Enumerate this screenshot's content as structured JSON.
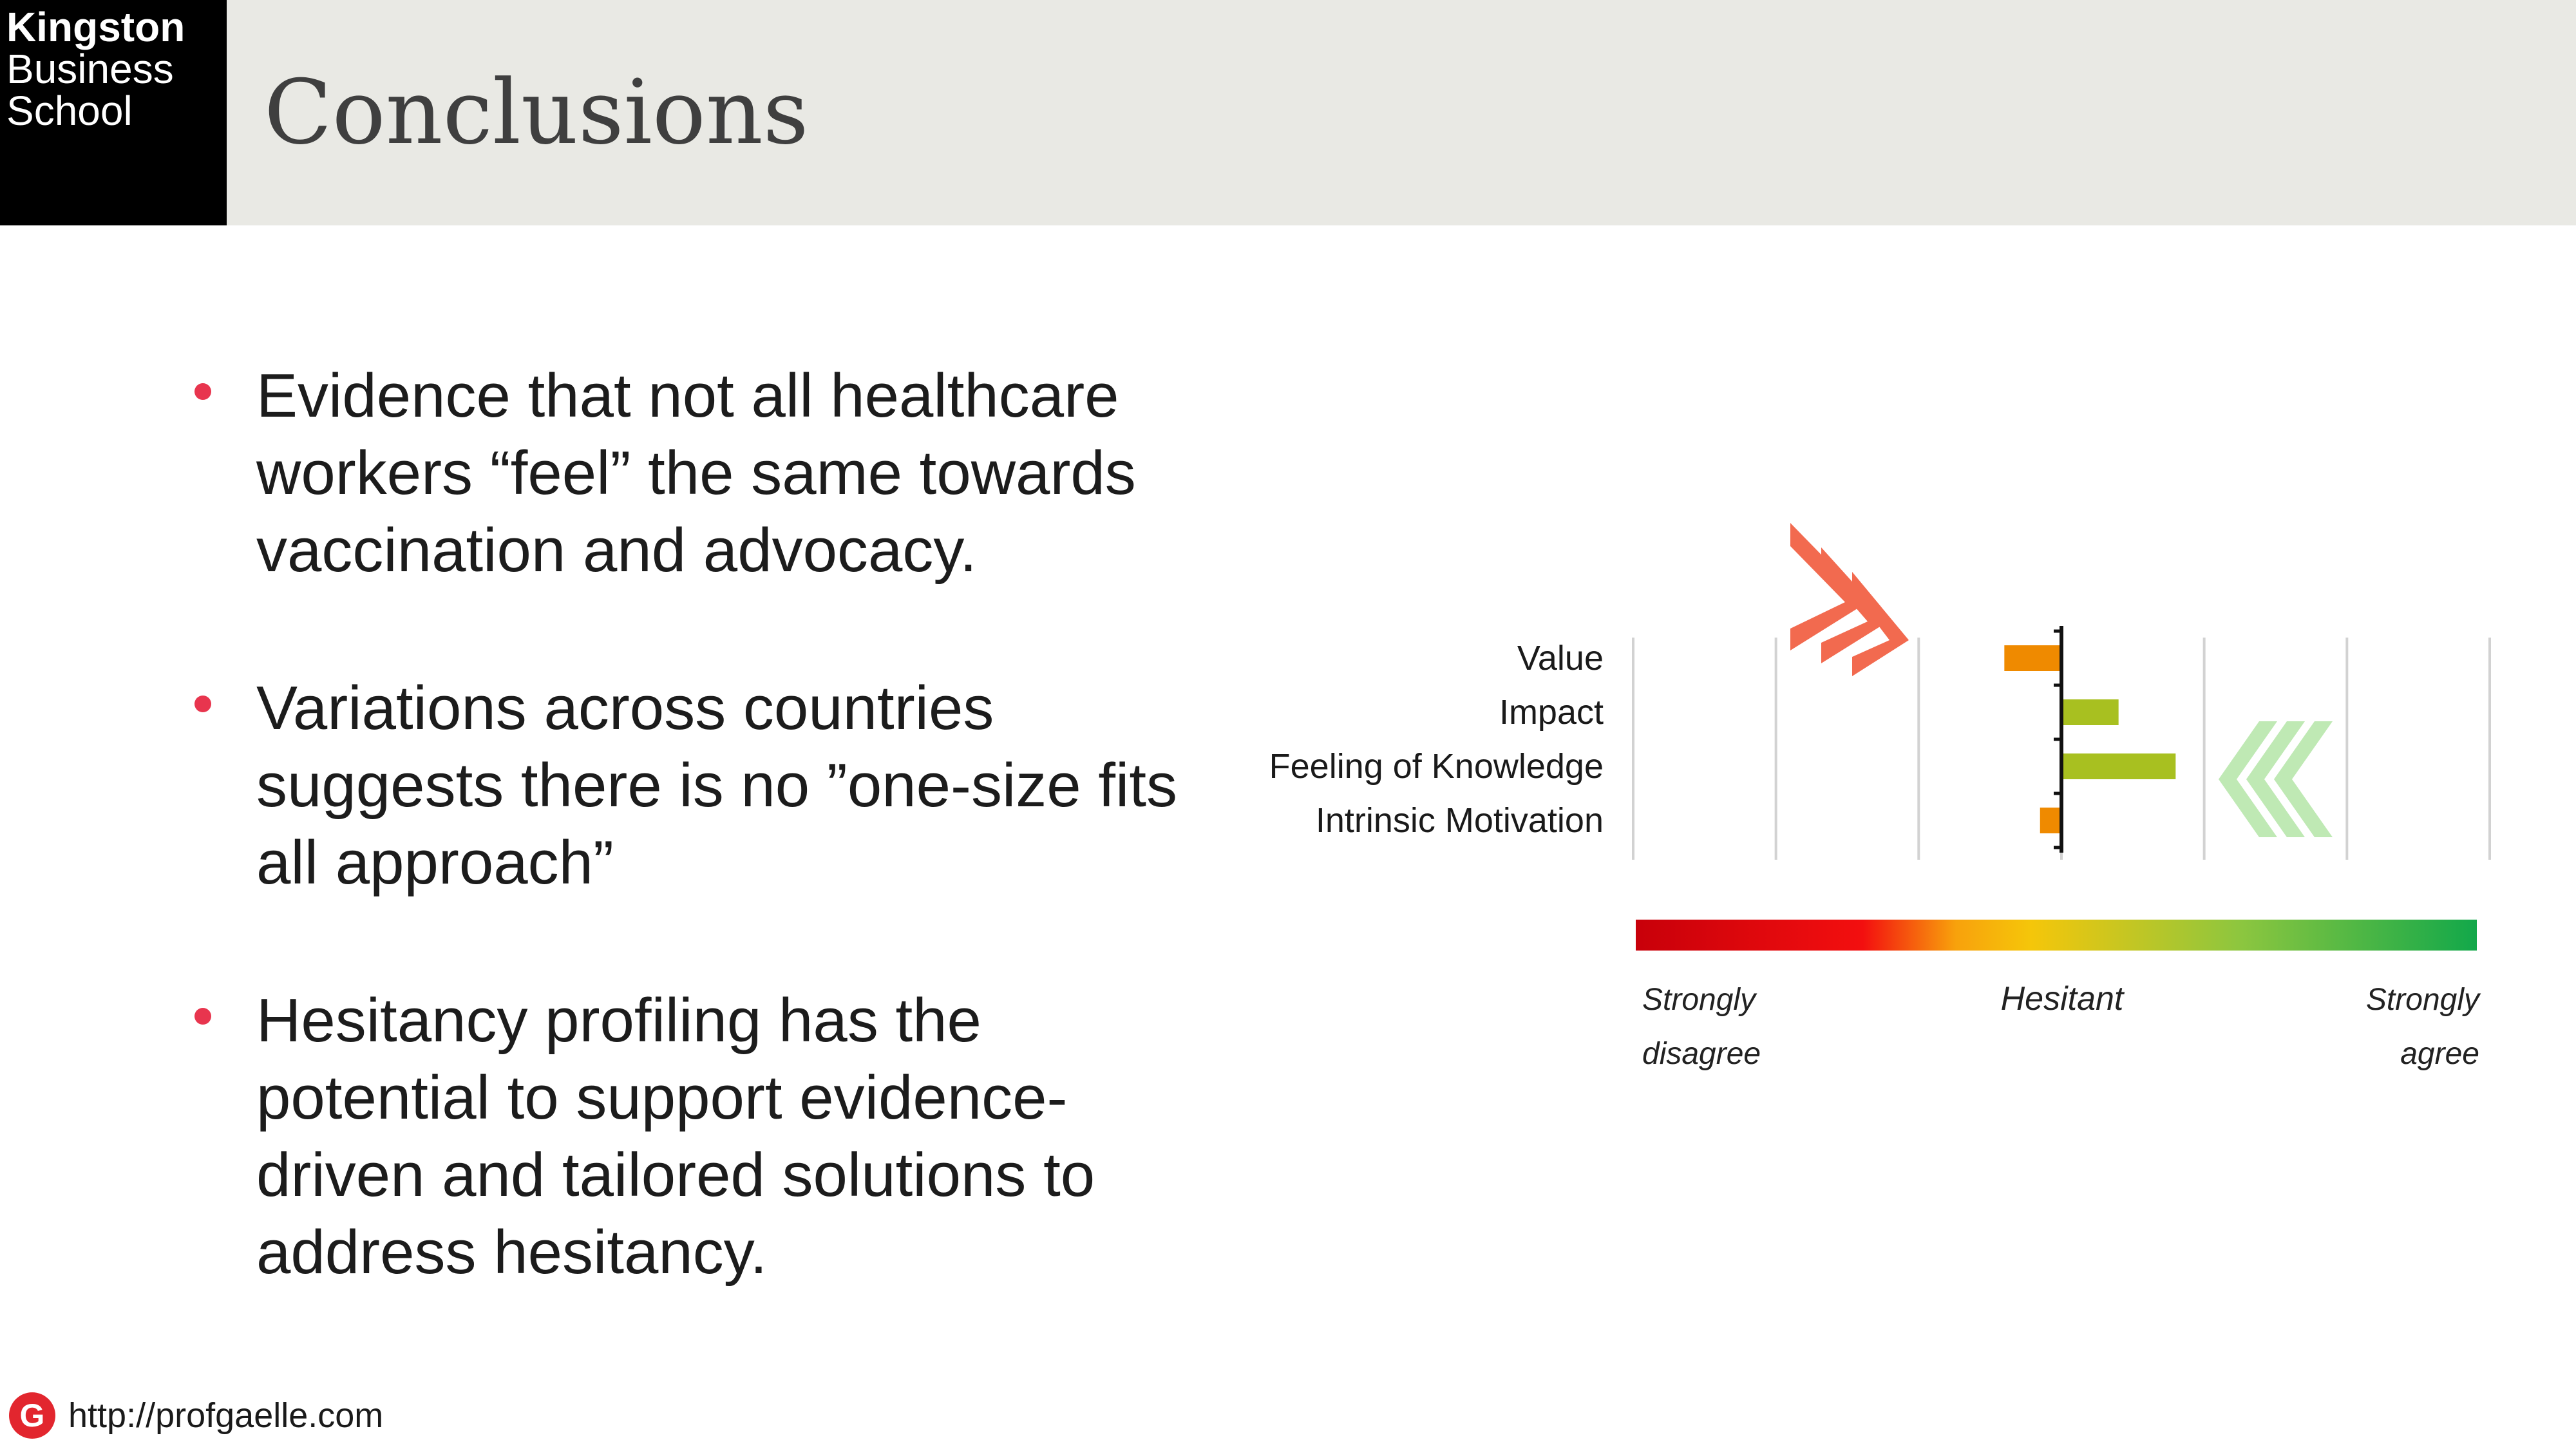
{
  "header": {
    "logo_lines": [
      "Kingston",
      "Business",
      "School"
    ],
    "title": "Conclusions",
    "band_color": "#e9e9e4"
  },
  "bullets": [
    "Evidence that not all healthcare workers “feel” the same towards vaccination and advocacy.",
    "Variations across countries suggests there is no ”one-size fits all approach”",
    "Hesitancy profiling has the potential to support evidence-driven and tailored solutions to address hesitancy."
  ],
  "chart_data": {
    "type": "bar",
    "orientation": "horizontal",
    "categories": [
      "Value",
      "Impact",
      "Feeling of Knowledge",
      "Intrinsic Motivation"
    ],
    "values": [
      -0.4,
      0.4,
      0.8,
      -0.15
    ],
    "xlim": [
      -3,
      3
    ],
    "center_label": "Hesitant",
    "scale_left_label": "Strongly disagree",
    "scale_right_label": "Strongly agree",
    "grid": true,
    "colors": {
      "negative": "#ef8a00",
      "positive": "#a8c020",
      "right_arrows": "#bfe9b4",
      "left_arrows": "#f26a4f",
      "gradient": [
        "#c8000a",
        "#f30f0f",
        "#f8a10c",
        "#f5c60a",
        "#8cc63f",
        "#12a84a"
      ]
    }
  },
  "footer": {
    "icon_letter": "G",
    "url": "http://profgaelle.com"
  },
  "colors": {
    "accent": "#e8354e",
    "title_text": "#3f3f3f"
  }
}
